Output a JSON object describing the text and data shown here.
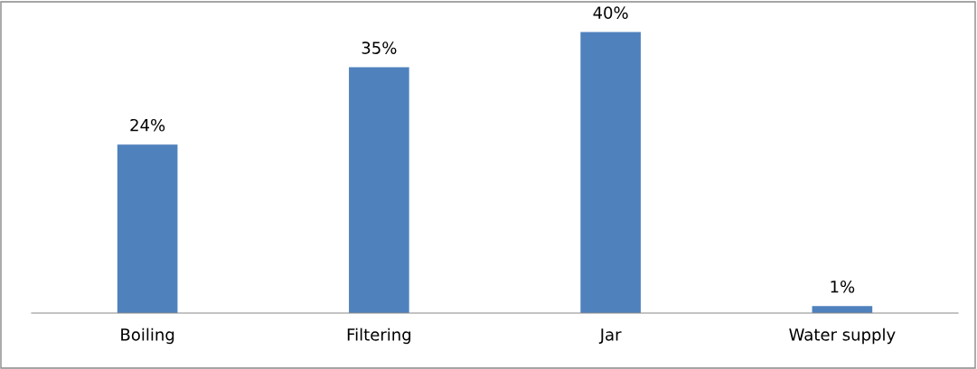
{
  "chart_data": {
    "type": "bar",
    "categories": [
      "Boiling",
      "Filtering",
      "Jar",
      "Water supply"
    ],
    "values": [
      24,
      35,
      40,
      1
    ],
    "color": "#4f81bd",
    "value_labels": [
      "24%",
      "35%",
      "40%",
      "1%"
    ],
    "grid": false,
    "legend": false
  }
}
